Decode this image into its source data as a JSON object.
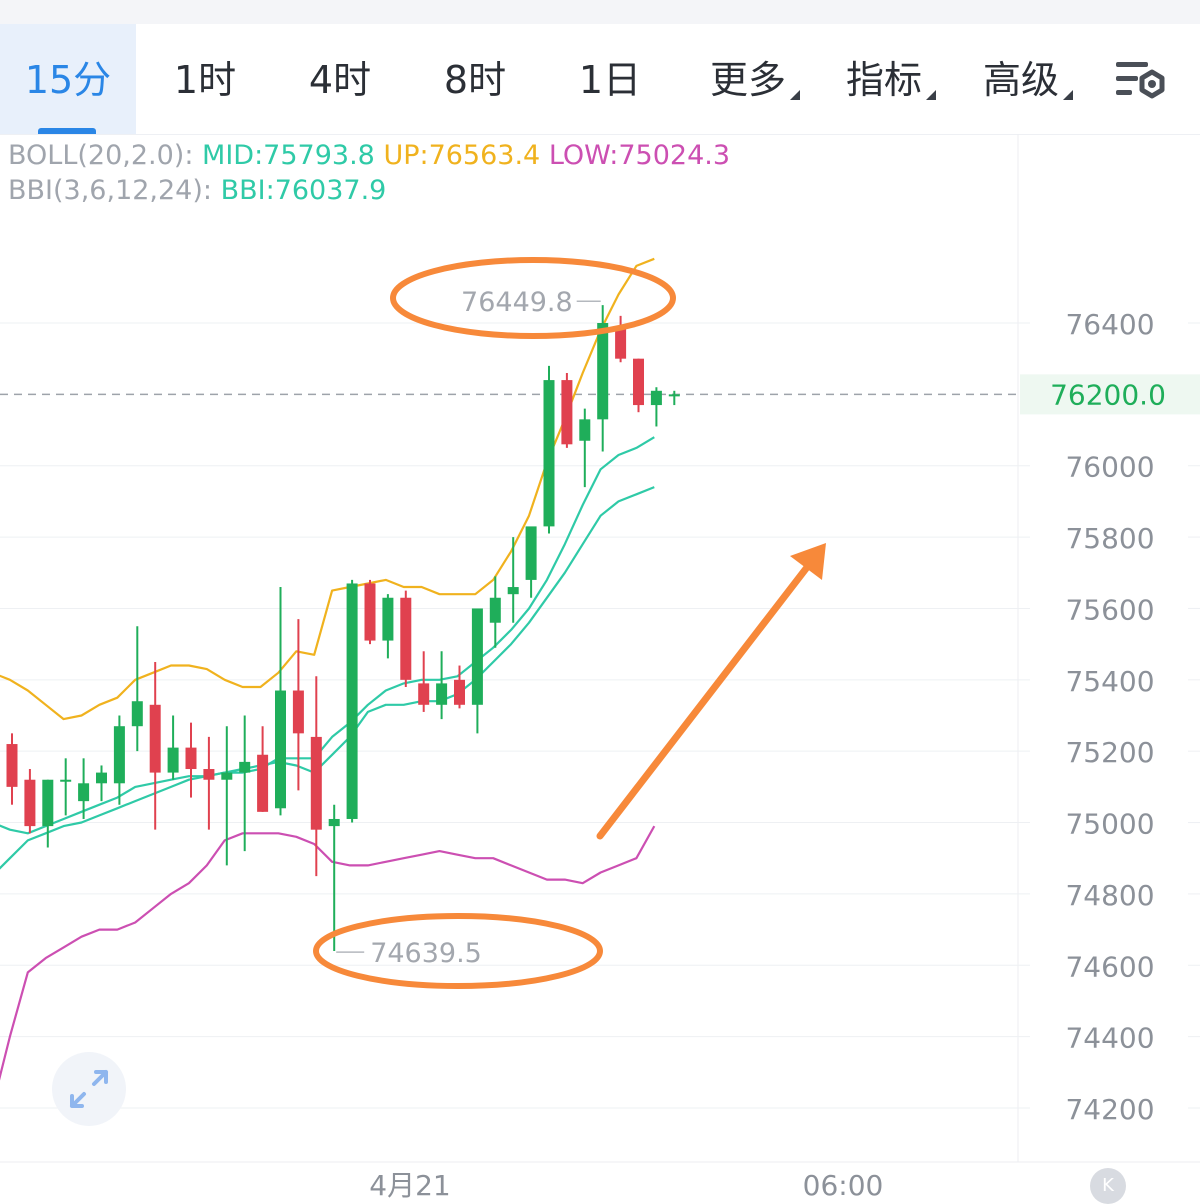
{
  "tabs": [
    {
      "label": "15分",
      "active": true
    },
    {
      "label": "1时",
      "active": false
    },
    {
      "label": "4时",
      "active": false
    },
    {
      "label": "8时",
      "active": false
    },
    {
      "label": "1日",
      "active": false
    }
  ],
  "dropdowns": [
    {
      "label": "更多"
    },
    {
      "label": "指标"
    },
    {
      "label": "高级"
    }
  ],
  "indicators": {
    "boll_label": "BOLL(20,2.0):",
    "boll_mid": "MID:75793.8",
    "boll_up": "UP:76563.4",
    "boll_low": "LOW:75024.3",
    "bbi_label": "BBI(3,6,12,24):",
    "bbi_value": "BBI:76037.9"
  },
  "colors": {
    "up_candle": "#1fae5a",
    "down_candle": "#e0414f",
    "boll_up": "#f0b21e",
    "boll_mid": "#2fcaa7",
    "boll_low": "#cc4fb2",
    "bbi": "#2fcaa7",
    "annotation": "#f7893a",
    "accent": "#2a86e6",
    "current_price": "#1fae5a"
  },
  "icons": {
    "settings": "chart-settings-icon",
    "expand": "expand-icon",
    "k": "k-line-icon"
  },
  "chart_data": {
    "type": "candlestick",
    "ylim": [
      74100,
      76900
    ],
    "y_ticks": [
      "76400",
      "76200.0",
      "76000",
      "75800",
      "75600",
      "75400",
      "75200",
      "75000",
      "74800",
      "74600",
      "74400",
      "74200"
    ],
    "y_tick_values": [
      76400,
      76200,
      76000,
      75800,
      75600,
      75400,
      75200,
      75000,
      74800,
      74600,
      74400,
      74200
    ],
    "x_labels": [
      "4月21",
      "06:00"
    ],
    "current_price": 76200.0,
    "current_price_label": "76200.0",
    "max_label": "76449.8",
    "min_label": "74639.5",
    "max_value": 76449.8,
    "min_value": 74639.5,
    "candles": [
      {
        "o": 75220,
        "h": 75250,
        "l": 75050,
        "c": 75100
      },
      {
        "o": 75120,
        "h": 75150,
        "l": 74970,
        "c": 74990
      },
      {
        "o": 74990,
        "h": 75120,
        "l": 74930,
        "c": 75120
      },
      {
        "o": 75120,
        "h": 75180,
        "l": 75020,
        "c": 75120
      },
      {
        "o": 75060,
        "h": 75180,
        "l": 75010,
        "c": 75110
      },
      {
        "o": 75110,
        "h": 75160,
        "l": 75060,
        "c": 75140
      },
      {
        "o": 75110,
        "h": 75300,
        "l": 75050,
        "c": 75270
      },
      {
        "o": 75270,
        "h": 75550,
        "l": 75200,
        "c": 75340
      },
      {
        "o": 75330,
        "h": 75450,
        "l": 74980,
        "c": 75140
      },
      {
        "o": 75140,
        "h": 75300,
        "l": 75120,
        "c": 75210
      },
      {
        "o": 75210,
        "h": 75280,
        "l": 75070,
        "c": 75150
      },
      {
        "o": 75150,
        "h": 75240,
        "l": 74980,
        "c": 75120
      },
      {
        "o": 75120,
        "h": 75270,
        "l": 74880,
        "c": 75140
      },
      {
        "o": 75140,
        "h": 75300,
        "l": 74920,
        "c": 75170
      },
      {
        "o": 75190,
        "h": 75270,
        "l": 75030,
        "c": 75030
      },
      {
        "o": 75040,
        "h": 75660,
        "l": 75020,
        "c": 75370
      },
      {
        "o": 75370,
        "h": 75570,
        "l": 75090,
        "c": 75250
      },
      {
        "o": 75240,
        "h": 75410,
        "l": 74850,
        "c": 74980
      },
      {
        "o": 74990,
        "h": 75050,
        "l": 74640,
        "c": 75010
      },
      {
        "o": 75010,
        "h": 75680,
        "l": 75000,
        "c": 75670
      },
      {
        "o": 75670,
        "h": 75680,
        "l": 75500,
        "c": 75510
      },
      {
        "o": 75510,
        "h": 75640,
        "l": 75460,
        "c": 75630
      },
      {
        "o": 75630,
        "h": 75650,
        "l": 75380,
        "c": 75400
      },
      {
        "o": 75390,
        "h": 75480,
        "l": 75310,
        "c": 75330
      },
      {
        "o": 75330,
        "h": 75480,
        "l": 75290,
        "c": 75390
      },
      {
        "o": 75400,
        "h": 75440,
        "l": 75320,
        "c": 75330
      },
      {
        "o": 75330,
        "h": 75600,
        "l": 75250,
        "c": 75600
      },
      {
        "o": 75560,
        "h": 75690,
        "l": 75490,
        "c": 75630
      },
      {
        "o": 75640,
        "h": 75800,
        "l": 75560,
        "c": 75660
      },
      {
        "o": 75680,
        "h": 75820,
        "l": 75630,
        "c": 75830
      },
      {
        "o": 75830,
        "h": 76280,
        "l": 75810,
        "c": 76240
      },
      {
        "o": 76240,
        "h": 76260,
        "l": 76050,
        "c": 76060
      },
      {
        "o": 76070,
        "h": 76160,
        "l": 75940,
        "c": 76130
      },
      {
        "o": 76130,
        "h": 76450,
        "l": 76040,
        "c": 76400
      },
      {
        "o": 76390,
        "h": 76420,
        "l": 76290,
        "c": 76300
      },
      {
        "o": 76300,
        "h": 76300,
        "l": 76150,
        "c": 76170
      },
      {
        "o": 76170,
        "h": 76220,
        "l": 76110,
        "c": 76210
      },
      {
        "o": 76200,
        "h": 76210,
        "l": 76170,
        "c": 76200
      }
    ],
    "boll_up_line": [
      75420,
      75400,
      75370,
      75330,
      75290,
      75300,
      75330,
      75350,
      75400,
      75420,
      75440,
      75440,
      75430,
      75400,
      75380,
      75380,
      75420,
      75480,
      75470,
      75650,
      75660,
      75670,
      75680,
      75660,
      75660,
      75640,
      75640,
      75640,
      75680,
      75760,
      75860,
      76010,
      76130,
      76260,
      76380,
      76480,
      76560,
      76580
    ],
    "boll_mid_line": [
      75000,
      74980,
      74970,
      74990,
      75010,
      75030,
      75050,
      75070,
      75100,
      75110,
      75120,
      75130,
      75130,
      75140,
      75140,
      75150,
      75180,
      75180,
      75180,
      75240,
      75280,
      75330,
      75370,
      75390,
      75400,
      75400,
      75410,
      75450,
      75490,
      75540,
      75600,
      75680,
      75780,
      75890,
      75990,
      76030,
      76050,
      76080
    ],
    "boll_low_line": [
      74200,
      74400,
      74580,
      74620,
      74650,
      74680,
      74700,
      74700,
      74720,
      74760,
      74800,
      74830,
      74880,
      74950,
      74970,
      74970,
      74970,
      74960,
      74940,
      74890,
      74880,
      74880,
      74890,
      74900,
      74910,
      74920,
      74910,
      74900,
      74900,
      74880,
      74860,
      74840,
      74840,
      74830,
      74860,
      74880,
      74900,
      74990
    ],
    "bbi_line": [
      74850,
      74900,
      74950,
      74970,
      74990,
      75000,
      75020,
      75040,
      75060,
      75080,
      75100,
      75120,
      75130,
      75140,
      75150,
      75160,
      75170,
      75160,
      75140,
      75190,
      75240,
      75310,
      75330,
      75330,
      75340,
      75340,
      75360,
      75400,
      75450,
      75500,
      75560,
      75630,
      75700,
      75780,
      75860,
      75900,
      75920,
      75940
    ]
  }
}
